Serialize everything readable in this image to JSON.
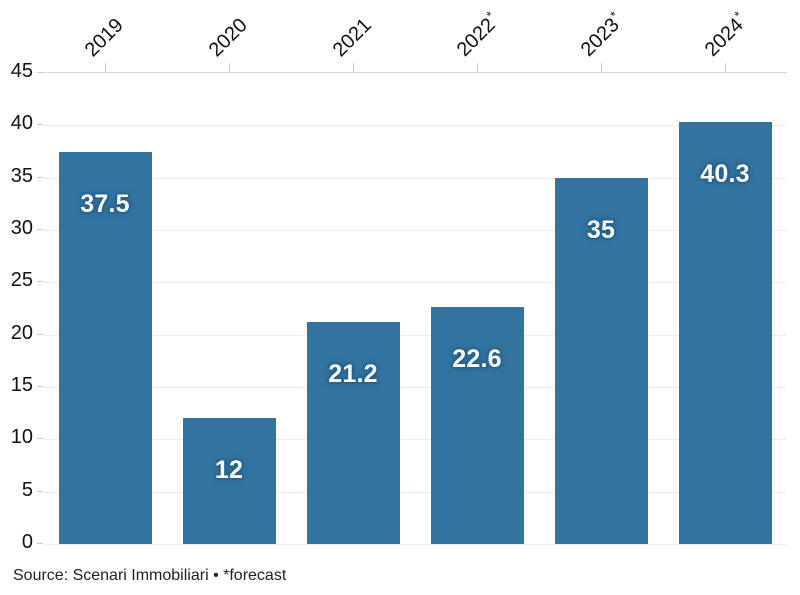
{
  "chart_data": {
    "type": "bar",
    "title": "",
    "categories": [
      {
        "year": "2019",
        "mark": ""
      },
      {
        "year": "2020",
        "mark": ""
      },
      {
        "year": "2021",
        "mark": ""
      },
      {
        "year": "2022",
        "mark": "*"
      },
      {
        "year": "2023",
        "mark": "*"
      },
      {
        "year": "2024",
        "mark": "*"
      }
    ],
    "values": [
      37.5,
      12,
      21.2,
      22.6,
      35,
      40.3
    ],
    "value_labels": [
      "37.5",
      "12",
      "21.2",
      "22.6",
      "35",
      "40.3"
    ],
    "y_ticks": [
      0,
      5,
      10,
      15,
      20,
      25,
      30,
      35,
      40,
      45
    ],
    "ylim": [
      0,
      45
    ],
    "xlabel": "",
    "ylabel": "",
    "grid": "horizontal",
    "legend": "none",
    "x_axis_position": "top",
    "bar_color": "#32739f",
    "value_label_color": "#ffffff",
    "value_label_halo_color": "#27618c",
    "axis_text_color": "#111111",
    "gridline_color": "#ececec",
    "axis_line_color": "#d8d8d8",
    "tick_color": "#c9c9c9",
    "background_color": "#ffffff"
  },
  "footer": {
    "source_text": "Source: Scenari Immobiliari • *forecast"
  }
}
